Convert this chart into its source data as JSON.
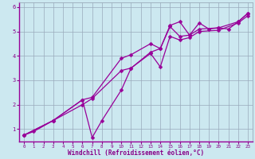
{
  "background_color": "#cce8f0",
  "grid_color": "#99aabb",
  "line_color": "#990099",
  "xlabel": "Windchill (Refroidissement éolien,°C)",
  "xlabel_color": "#880088",
  "xlim": [
    -0.5,
    23.5
  ],
  "ylim": [
    0.5,
    6.2
  ],
  "xticks": [
    0,
    1,
    2,
    3,
    4,
    5,
    6,
    7,
    8,
    9,
    10,
    11,
    12,
    13,
    14,
    15,
    16,
    17,
    18,
    19,
    20,
    21,
    22,
    23
  ],
  "yticks": [
    1,
    2,
    3,
    4,
    5,
    6
  ],
  "line1_x": [
    0,
    1,
    3,
    6,
    7,
    8,
    10,
    11,
    13,
    14,
    15,
    16,
    17,
    18,
    19,
    20,
    21,
    22,
    23
  ],
  "line1_y": [
    0.75,
    0.9,
    1.35,
    2.2,
    0.65,
    1.35,
    2.6,
    3.5,
    4.15,
    4.3,
    5.25,
    5.4,
    4.85,
    5.35,
    5.1,
    5.15,
    5.1,
    5.4,
    5.75
  ],
  "line2_x": [
    0,
    3,
    6,
    7,
    10,
    11,
    13,
    14,
    15,
    16,
    17,
    18,
    20,
    22,
    23
  ],
  "line2_y": [
    0.75,
    1.35,
    2.2,
    2.3,
    3.9,
    4.05,
    4.5,
    4.3,
    5.2,
    4.8,
    4.85,
    5.1,
    5.15,
    5.4,
    5.75
  ],
  "line3_x": [
    0,
    3,
    6,
    7,
    10,
    11,
    13,
    14,
    15,
    16,
    17,
    18,
    20,
    22,
    23
  ],
  "line3_y": [
    0.75,
    1.35,
    2.0,
    2.25,
    3.4,
    3.5,
    4.1,
    3.55,
    4.8,
    4.65,
    4.75,
    5.0,
    5.05,
    5.35,
    5.65
  ],
  "markersize": 2.5,
  "linewidth": 0.9
}
